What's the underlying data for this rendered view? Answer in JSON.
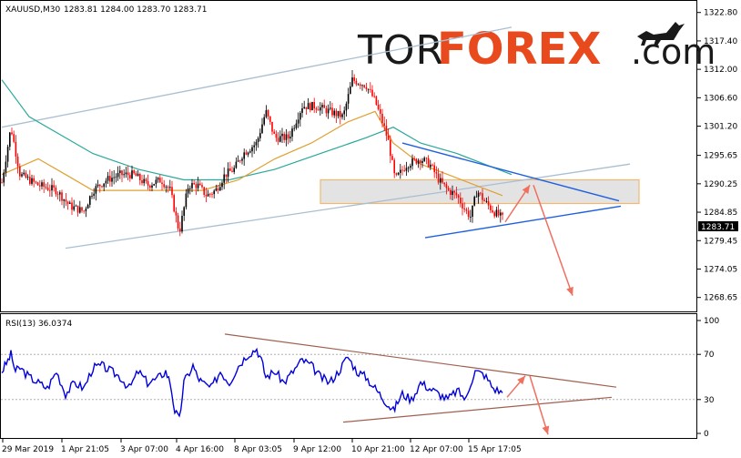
{
  "header": {
    "symbol": "XAUUSD,M30",
    "ohlc": "1283.81 1284.00 1283.70 1283.71"
  },
  "logo": {
    "part1": "TOR",
    "part2": "FOREX",
    "part3": ".com"
  },
  "rsi_header": "RSI(13) 36.0374",
  "current_price_label": "1283.71",
  "colors": {
    "bull": "#000000",
    "bear": "#ff0000",
    "ma_fast": "#e0a030",
    "ma_slow": "#2aa89a",
    "channel": "#a9bfd1",
    "wedge": "#2060e0",
    "zone_fill": "#d9d9d9",
    "zone_border": "#f2b870",
    "arrow": "#f07060",
    "rsi_line": "#0000dd",
    "rsi_trend": "#a06050"
  },
  "chart_data": [
    {
      "type": "candlestick",
      "ylim": [
        1266.0,
        1325.0
      ],
      "y_ticks": [
        "1322.80",
        "1317.40",
        "1312.00",
        "1306.60",
        "1301.20",
        "1295.65",
        "1290.25",
        "1284.85",
        "1279.45",
        "1274.05",
        "1268.65"
      ],
      "x_ticks": [
        "29 Mar 2019",
        "1 Apr 21:05",
        "3 Apr 07:00",
        "4 Apr 16:00",
        "8 Apr 03:05",
        "9 Apr 12:00",
        "10 Apr 21:00",
        "12 Apr 07:00",
        "15 Apr 17:05"
      ],
      "price_path": [
        [
          0,
          1290.5
        ],
        [
          10,
          1301
        ],
        [
          20,
          1292
        ],
        [
          40,
          1290
        ],
        [
          60,
          1289
        ],
        [
          75,
          1286
        ],
        [
          90,
          1285
        ],
        [
          100,
          1289
        ],
        [
          115,
          1291
        ],
        [
          130,
          1292
        ],
        [
          145,
          1292
        ],
        [
          160,
          1290
        ],
        [
          175,
          1291
        ],
        [
          185,
          1289
        ],
        [
          195,
          1281
        ],
        [
          205,
          1290
        ],
        [
          215,
          1290
        ],
        [
          225,
          1288
        ],
        [
          235,
          1289
        ],
        [
          245,
          1292
        ],
        [
          255,
          1293
        ],
        [
          265,
          1296
        ],
        [
          280,
          1298
        ],
        [
          290,
          1304
        ],
        [
          300,
          1299
        ],
        [
          315,
          1299
        ],
        [
          330,
          1305
        ],
        [
          345,
          1305
        ],
        [
          360,
          1304
        ],
        [
          375,
          1303
        ],
        [
          385,
          1310
        ],
        [
          400,
          1309
        ],
        [
          410,
          1306
        ],
        [
          420,
          1301
        ],
        [
          425,
          1298
        ],
        [
          432,
          1291
        ],
        [
          445,
          1294
        ],
        [
          460,
          1295
        ],
        [
          470,
          1294
        ],
        [
          480,
          1291
        ],
        [
          490,
          1289
        ],
        [
          500,
          1288
        ],
        [
          510,
          1285
        ],
        [
          515,
          1284
        ],
        [
          522,
          1289
        ],
        [
          530,
          1287
        ],
        [
          540,
          1285
        ],
        [
          550,
          1283.7
        ]
      ],
      "ma_fast_path": [
        [
          0,
          1292
        ],
        [
          40,
          1295
        ],
        [
          70,
          1292
        ],
        [
          100,
          1289
        ],
        [
          140,
          1289
        ],
        [
          180,
          1289
        ],
        [
          220,
          1289
        ],
        [
          260,
          1291
        ],
        [
          300,
          1295
        ],
        [
          340,
          1298
        ],
        [
          380,
          1302
        ],
        [
          410,
          1304
        ],
        [
          430,
          1298
        ],
        [
          460,
          1294
        ],
        [
          490,
          1292
        ],
        [
          520,
          1290
        ],
        [
          550,
          1288
        ]
      ],
      "ma_slow_path": [
        [
          0,
          1310
        ],
        [
          30,
          1303
        ],
        [
          60,
          1300
        ],
        [
          100,
          1296
        ],
        [
          150,
          1293
        ],
        [
          200,
          1291
        ],
        [
          250,
          1291
        ],
        [
          300,
          1293
        ],
        [
          350,
          1296
        ],
        [
          400,
          1299
        ],
        [
          430,
          1301
        ],
        [
          460,
          1298
        ],
        [
          500,
          1296
        ],
        [
          530,
          1294
        ],
        [
          560,
          1292
        ]
      ],
      "channel_upper": [
        [
          0,
          1301
        ],
        [
          560,
          1320
        ]
      ],
      "channel_lower": [
        [
          70,
          1278
        ],
        [
          690,
          1294
        ]
      ],
      "wedge_upper": [
        [
          440,
          1298
        ],
        [
          678,
          1287
        ]
      ],
      "wedge_lower": [
        [
          465,
          1280
        ],
        [
          680,
          1286
        ]
      ],
      "zone": [
        1291,
        1286.5
      ],
      "zone_x": [
        350,
        700
      ],
      "arrows": [
        [
          [
            553,
            1283
          ],
          [
            580,
            1290
          ]
        ],
        [
          [
            584,
            1290
          ],
          [
            627,
            1269
          ]
        ]
      ]
    },
    {
      "type": "line",
      "name": "RSI(13)",
      "ylim": [
        0,
        100
      ],
      "y_ticks": [
        "100",
        "70",
        "30",
        "0"
      ],
      "current_value": 36.0374,
      "path": [
        [
          0,
          55
        ],
        [
          5,
          62
        ],
        [
          10,
          70
        ],
        [
          15,
          55
        ],
        [
          20,
          58
        ],
        [
          30,
          50
        ],
        [
          40,
          45
        ],
        [
          50,
          40
        ],
        [
          60,
          55
        ],
        [
          70,
          35
        ],
        [
          80,
          45
        ],
        [
          90,
          40
        ],
        [
          100,
          58
        ],
        [
          110,
          60
        ],
        [
          120,
          55
        ],
        [
          130,
          50
        ],
        [
          140,
          40
        ],
        [
          150,
          55
        ],
        [
          160,
          45
        ],
        [
          170,
          48
        ],
        [
          180,
          55
        ],
        [
          185,
          45
        ],
        [
          190,
          20
        ],
        [
          195,
          12
        ],
        [
          200,
          45
        ],
        [
          210,
          60
        ],
        [
          215,
          50
        ],
        [
          220,
          45
        ],
        [
          230,
          40
        ],
        [
          240,
          55
        ],
        [
          250,
          45
        ],
        [
          260,
          60
        ],
        [
          270,
          70
        ],
        [
          280,
          75
        ],
        [
          285,
          65
        ],
        [
          290,
          50
        ],
        [
          300,
          55
        ],
        [
          310,
          45
        ],
        [
          320,
          55
        ],
        [
          330,
          65
        ],
        [
          340,
          60
        ],
        [
          350,
          50
        ],
        [
          360,
          45
        ],
        [
          370,
          55
        ],
        [
          380,
          68
        ],
        [
          390,
          55
        ],
        [
          400,
          50
        ],
        [
          410,
          40
        ],
        [
          415,
          35
        ],
        [
          420,
          30
        ],
        [
          425,
          25
        ],
        [
          430,
          20
        ],
        [
          435,
          28
        ],
        [
          440,
          35
        ],
        [
          450,
          30
        ],
        [
          460,
          45
        ],
        [
          470,
          40
        ],
        [
          480,
          35
        ],
        [
          490,
          30
        ],
        [
          500,
          38
        ],
        [
          510,
          30
        ],
        [
          515,
          45
        ],
        [
          520,
          55
        ],
        [
          530,
          52
        ],
        [
          540,
          40
        ],
        [
          550,
          36
        ]
      ],
      "trend_upper": [
        [
          245,
          88
        ],
        [
          675,
          41
        ]
      ],
      "trend_lower": [
        [
          375,
          10
        ],
        [
          670,
          32
        ]
      ],
      "arrows": [
        [
          [
            555,
            32
          ],
          [
            575,
            51
          ]
        ],
        [
          [
            580,
            51
          ],
          [
            600,
            -1
          ]
        ]
      ]
    }
  ]
}
